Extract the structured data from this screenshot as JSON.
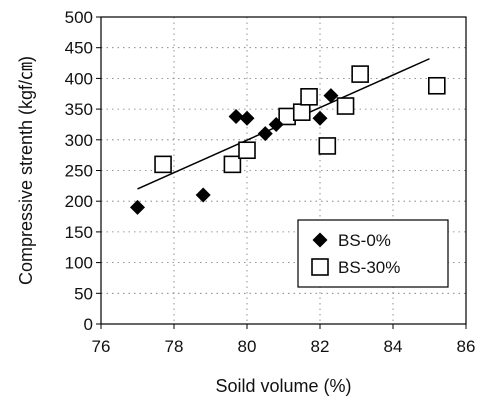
{
  "chart_data": {
    "type": "scatter",
    "xlabel": "Soild volume (%)",
    "ylabel": "Compressive strenth (kgf/㎝)",
    "xlim": [
      76,
      86
    ],
    "ylim": [
      0,
      500
    ],
    "xticks": [
      "76",
      "78",
      "80",
      "82",
      "84",
      "86"
    ],
    "yticks": [
      "0",
      "50",
      "100",
      "150",
      "200",
      "250",
      "300",
      "350",
      "400",
      "450",
      "500"
    ],
    "grid": "dotted horizontal and vertical",
    "legend_position": "bottom-right",
    "series": [
      {
        "name": "BS-0%",
        "marker": "diamond",
        "color": "#000000",
        "points": [
          {
            "x": 77.0,
            "y": 190
          },
          {
            "x": 78.8,
            "y": 210
          },
          {
            "x": 79.7,
            "y": 338
          },
          {
            "x": 80.0,
            "y": 335
          },
          {
            "x": 80.5,
            "y": 310
          },
          {
            "x": 80.8,
            "y": 325
          },
          {
            "x": 82.0,
            "y": 335
          },
          {
            "x": 82.3,
            "y": 372
          }
        ]
      },
      {
        "name": "BS-30%",
        "marker": "square-open",
        "color": "#000000",
        "points": [
          {
            "x": 77.7,
            "y": 260
          },
          {
            "x": 79.6,
            "y": 260
          },
          {
            "x": 80.0,
            "y": 283
          },
          {
            "x": 81.1,
            "y": 338
          },
          {
            "x": 81.5,
            "y": 345
          },
          {
            "x": 81.7,
            "y": 370
          },
          {
            "x": 82.2,
            "y": 290
          },
          {
            "x": 82.7,
            "y": 355
          },
          {
            "x": 83.1,
            "y": 407
          },
          {
            "x": 85.2,
            "y": 388
          }
        ]
      }
    ],
    "trendline": {
      "x": [
        77.0,
        85.0
      ],
      "y": [
        220,
        432
      ]
    }
  }
}
